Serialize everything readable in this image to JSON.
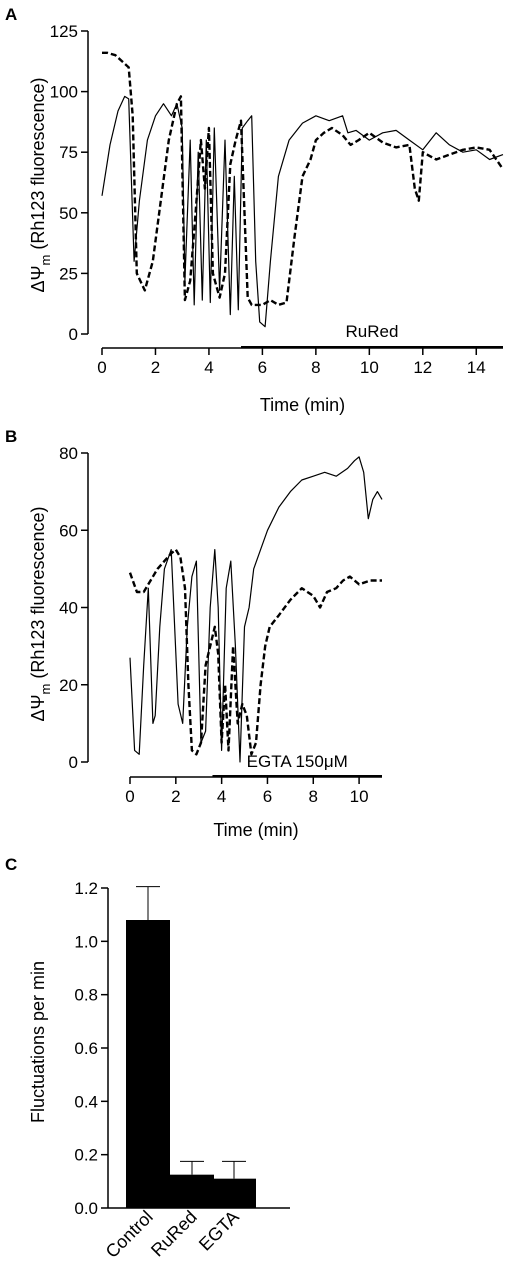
{
  "chart_data": [
    {
      "panel": "A",
      "type": "line",
      "xlabel": "Time (min)",
      "ylabel_prefix": "ΔΨ",
      "ylabel_sub": "m",
      "ylabel_suffix": " (Rh123 fluorescence)",
      "xlim": [
        0,
        15
      ],
      "ylim": [
        0,
        125
      ],
      "xticks": [
        0,
        2,
        4,
        6,
        8,
        10,
        12,
        14
      ],
      "yticks": [
        0,
        25,
        50,
        75,
        100,
        125
      ],
      "annotation": {
        "label": "RuRed",
        "x_start": 5.2,
        "x_end": 15
      },
      "series": [
        {
          "style": "solid",
          "x": [
            0,
            0.3,
            0.6,
            0.85,
            1.0,
            1.2,
            1.4,
            1.7,
            2.0,
            2.3,
            2.6,
            2.8,
            3.0,
            3.1,
            3.3,
            3.45,
            3.6,
            3.75,
            3.9,
            4.05,
            4.2,
            4.4,
            4.6,
            4.8,
            4.95,
            5.1,
            5.25,
            5.45,
            5.6,
            5.75,
            5.9,
            6.1,
            6.3,
            6.6,
            7.0,
            7.5,
            8.0,
            8.5,
            9.0,
            9.2,
            9.5,
            10.0,
            10.5,
            11.0,
            11.5,
            12.0,
            12.5,
            13.0,
            13.5,
            14.0,
            14.5,
            15.0
          ],
          "y": [
            57,
            78,
            92,
            98,
            97,
            30,
            55,
            80,
            90,
            95,
            90,
            95,
            85,
            22,
            80,
            12,
            75,
            14,
            80,
            13,
            85,
            18,
            80,
            8,
            65,
            10,
            85,
            88,
            90,
            30,
            5,
            3,
            30,
            65,
            80,
            87,
            90,
            88,
            90,
            83,
            84,
            80,
            83,
            84,
            80,
            76,
            83,
            78,
            75,
            76,
            72,
            74
          ]
        },
        {
          "style": "dashed",
          "x": [
            0,
            0.2,
            0.5,
            0.8,
            1.0,
            1.15,
            1.3,
            1.6,
            1.9,
            2.2,
            2.5,
            2.8,
            2.95,
            3.1,
            3.3,
            3.5,
            3.7,
            3.85,
            4.0,
            4.15,
            4.4,
            4.6,
            4.8,
            5.0,
            5.2,
            5.45,
            5.6,
            5.75,
            6.0,
            6.3,
            6.6,
            6.9,
            7.2,
            7.5,
            7.8,
            8.0,
            8.3,
            8.6,
            9.0,
            9.3,
            9.6,
            10.0,
            10.5,
            11.0,
            11.5,
            11.7,
            11.85,
            12.0,
            12.5,
            13.0,
            13.5,
            14.0,
            14.5,
            15.0
          ],
          "y": [
            116,
            116,
            115,
            112,
            110,
            90,
            25,
            18,
            30,
            55,
            80,
            95,
            98,
            14,
            22,
            50,
            80,
            60,
            85,
            25,
            15,
            25,
            70,
            80,
            88,
            15,
            12,
            12,
            12,
            14,
            12,
            13,
            40,
            65,
            72,
            80,
            83,
            85,
            82,
            78,
            80,
            83,
            79,
            77,
            78,
            60,
            55,
            75,
            72,
            74,
            76,
            77,
            76,
            68
          ]
        }
      ]
    },
    {
      "panel": "B",
      "type": "line",
      "xlabel": "Time (min)",
      "ylabel_prefix": "ΔΨ",
      "ylabel_sub": "m",
      "ylabel_suffix": " (Rh123 fluorescence)",
      "xlim": [
        0,
        11
      ],
      "ylim": [
        0,
        80
      ],
      "xticks": [
        0,
        2,
        4,
        6,
        8,
        10
      ],
      "yticks": [
        0,
        20,
        40,
        60,
        80
      ],
      "annotation": {
        "label": "EGTA 150μM",
        "x_start": 3.6,
        "x_end": 11
      },
      "series": [
        {
          "style": "solid",
          "x": [
            0,
            0.2,
            0.4,
            0.6,
            0.8,
            1.0,
            1.1,
            1.3,
            1.5,
            1.8,
            2.1,
            2.3,
            2.5,
            2.7,
            2.9,
            3.1,
            3.3,
            3.5,
            3.7,
            3.85,
            4.0,
            4.2,
            4.4,
            4.6,
            4.8,
            5.0,
            5.2,
            5.4,
            5.7,
            6.0,
            6.5,
            7.0,
            7.5,
            8.0,
            8.5,
            9.0,
            9.5,
            9.8,
            10.0,
            10.2,
            10.4,
            10.6,
            10.8,
            11.0
          ],
          "y": [
            27,
            3,
            2,
            25,
            45,
            10,
            12,
            35,
            50,
            55,
            15,
            10,
            35,
            48,
            52,
            5,
            8,
            40,
            55,
            40,
            3,
            45,
            52,
            30,
            0,
            35,
            40,
            50,
            55,
            60,
            66,
            70,
            73,
            74,
            75,
            74,
            76,
            78,
            79,
            75,
            63,
            68,
            70,
            68
          ]
        },
        {
          "style": "dashed",
          "x": [
            0,
            0.3,
            0.6,
            0.9,
            1.2,
            1.5,
            1.8,
            2.0,
            2.2,
            2.4,
            2.55,
            2.7,
            2.9,
            3.1,
            3.3,
            3.5,
            3.7,
            3.85,
            4.0,
            4.15,
            4.3,
            4.5,
            4.7,
            4.9,
            5.1,
            5.3,
            5.5,
            5.7,
            5.9,
            6.1,
            6.5,
            7.0,
            7.5,
            8.0,
            8.3,
            8.6,
            9.0,
            9.3,
            9.6,
            10.0,
            10.5,
            11.0
          ],
          "y": [
            49,
            44,
            44,
            47,
            50,
            52,
            54,
            55,
            53,
            45,
            20,
            3,
            2,
            5,
            25,
            30,
            35,
            28,
            5,
            20,
            3,
            30,
            10,
            15,
            12,
            2,
            5,
            20,
            30,
            35,
            38,
            42,
            45,
            43,
            40,
            44,
            45,
            47,
            48,
            46,
            47,
            47
          ]
        }
      ]
    },
    {
      "panel": "C",
      "type": "bar",
      "ylabel": "Fluctuations per min",
      "ylim": [
        0,
        1.2
      ],
      "yticks": [
        "0.0",
        "0.2",
        "0.4",
        "0.6",
        "0.8",
        "1.0",
        "1.2"
      ],
      "categories": [
        "Control",
        "RuRed",
        "EGTA"
      ],
      "values": [
        1.08,
        0.125,
        0.11
      ],
      "errors": [
        0.125,
        0.05,
        0.065
      ],
      "bar_color": "#000000"
    }
  ]
}
